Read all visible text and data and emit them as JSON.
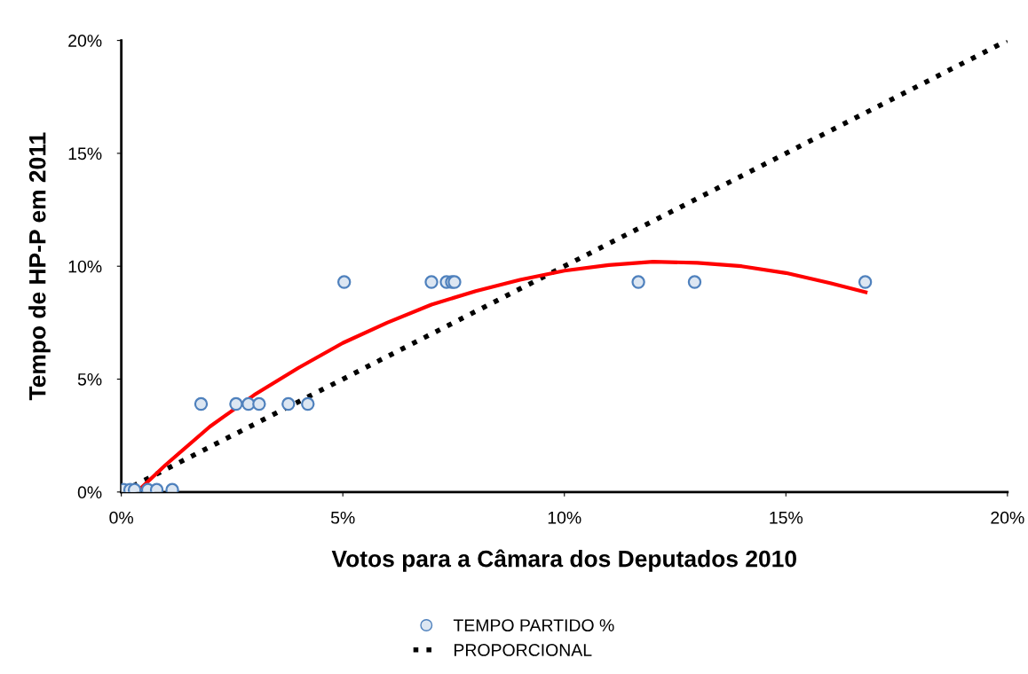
{
  "chart_data": {
    "type": "scatter",
    "xlabel": "Votos para a Câmara dos Deputados 2010",
    "ylabel": "Tempo de HP-P em 2011",
    "xlim": [
      0,
      20
    ],
    "ylim": [
      0,
      20
    ],
    "xticks": [
      {
        "value": 0,
        "label": "0%"
      },
      {
        "value": 5,
        "label": "5%"
      },
      {
        "value": 10,
        "label": "10%"
      },
      {
        "value": 15,
        "label": "15%"
      },
      {
        "value": 20,
        "label": "20%"
      }
    ],
    "yticks": [
      {
        "value": 0,
        "label": "0%"
      },
      {
        "value": 5,
        "label": "5%"
      },
      {
        "value": 10,
        "label": "10%"
      },
      {
        "value": 15,
        "label": "15%"
      },
      {
        "value": 20,
        "label": "20%"
      }
    ],
    "grid": false,
    "legend": "bottom",
    "series": [
      {
        "name": "TEMPO PARTIDO %",
        "marker": "circle",
        "color": "#4f81bd",
        "x": [
          0.05,
          0.2,
          0.3,
          0.6,
          0.8,
          1.15,
          1.8,
          2.59,
          2.87,
          3.11,
          3.77,
          4.21,
          5.03,
          7.0,
          7.34,
          7.46,
          7.52,
          11.67,
          12.94,
          16.79
        ],
        "values": [
          0.1,
          0.1,
          0.1,
          0.1,
          0.1,
          0.1,
          3.9,
          3.9,
          3.9,
          3.9,
          3.9,
          3.9,
          9.3,
          9.3,
          9.3,
          9.3,
          9.3,
          9.3,
          9.3,
          9.3
        ]
      },
      {
        "name": "PROPORCIONAL",
        "type": "line",
        "line_style": "dotted",
        "marker": "none",
        "color": "#000000",
        "x": [
          0,
          20
        ],
        "values": [
          0,
          20
        ]
      },
      {
        "type": "line",
        "line_style": "solid",
        "marker": "none",
        "color": "#ff0000",
        "x": [
          0.35,
          1,
          2,
          3,
          4,
          5,
          6,
          7,
          8,
          9,
          10,
          11,
          12,
          13,
          14,
          15,
          16,
          16.8
        ],
        "values": [
          0,
          1.2,
          2.9,
          4.3,
          5.5,
          6.6,
          7.5,
          8.3,
          8.9,
          9.4,
          9.8,
          10.05,
          10.2,
          10.15,
          10.0,
          9.7,
          9.25,
          8.85
        ]
      }
    ]
  }
}
